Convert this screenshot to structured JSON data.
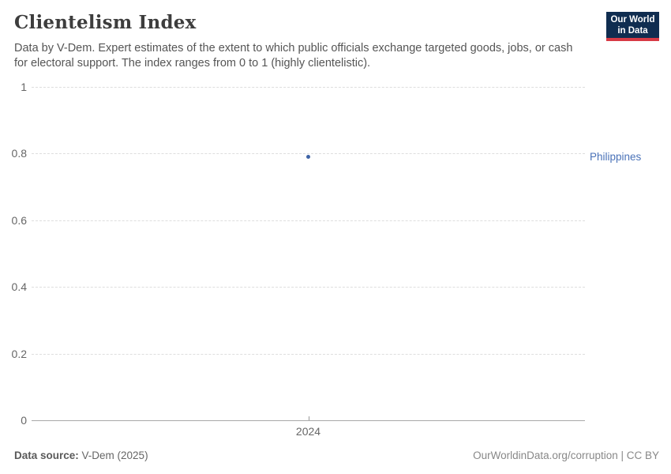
{
  "header": {
    "title": "Clientelism Index",
    "subtitle_lines": [
      "Data by V-Dem. Expert estimates of the extent to which public officials exchange targeted goods, jobs, or cash",
      "for electoral support. The index ranges from 0 to 1 (highly clientelistic)."
    ],
    "logo": {
      "line1": "Our World",
      "line2": "in Data"
    }
  },
  "chart_data": {
    "type": "scatter",
    "title": "Clientelism Index",
    "x": [
      2024
    ],
    "xticks": [
      "2024"
    ],
    "series": [
      {
        "name": "Philippines",
        "values": [
          0.79
        ]
      }
    ],
    "xlabel": "",
    "ylabel": "",
    "ylim": [
      0,
      1
    ],
    "yticks": [
      0,
      0.2,
      0.4,
      0.6,
      0.8,
      1
    ],
    "grid": "horizontal-dashed",
    "legend_position": "right-entity-label",
    "point_color": "#3e63a6",
    "label_color": "#4a72b8"
  },
  "footer": {
    "source_label": "Data source:",
    "source_value": " V-Dem (2025)",
    "credit": "OurWorldinData.org/corruption | CC BY"
  }
}
